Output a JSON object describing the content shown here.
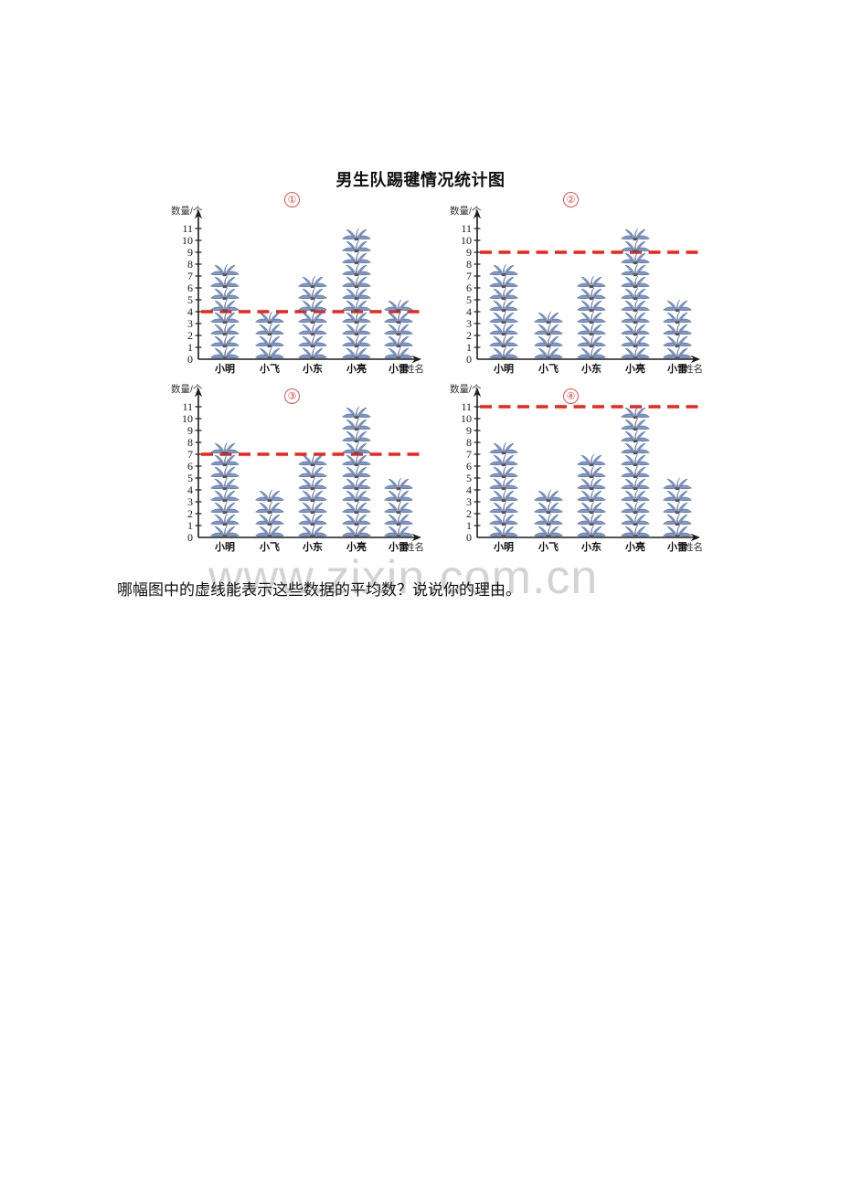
{
  "title": "男生队踢毽情况统计图",
  "question": "哪幅图中的虚线能表示这些数据的平均数？说说你的理由。",
  "watermark": "www.zixin.com.cn",
  "chart_data": {
    "type": "pictograph",
    "title": "男生队踢毽情况统计图",
    "ylabel": "数量/个",
    "xlabel": "姓名",
    "categories": [
      "小明",
      "小飞",
      "小东",
      "小亮",
      "小雷"
    ],
    "values": [
      8,
      4,
      7,
      11,
      5
    ],
    "ylim": [
      0,
      11
    ],
    "yticks": [
      0,
      1,
      2,
      3,
      4,
      5,
      6,
      7,
      8,
      9,
      10,
      11
    ],
    "grid": false,
    "icon": "shuttlecock-icon",
    "charts": [
      {
        "label": "①",
        "dashed_line_value": 4
      },
      {
        "label": "②",
        "dashed_line_value": 9
      },
      {
        "label": "③",
        "dashed_line_value": 7
      },
      {
        "label": "④",
        "dashed_line_value": 11
      }
    ],
    "colors": {
      "dashed_line": "#f02318",
      "chart_number": "#e05252",
      "icon_feather": "#7f97c2",
      "icon_feather_stroke": "#44609a",
      "icon_base": "#55505a",
      "icon_base_rim": "#9a9aa4",
      "axis": "#1a1a1a",
      "watermark": "#afafaf"
    }
  }
}
